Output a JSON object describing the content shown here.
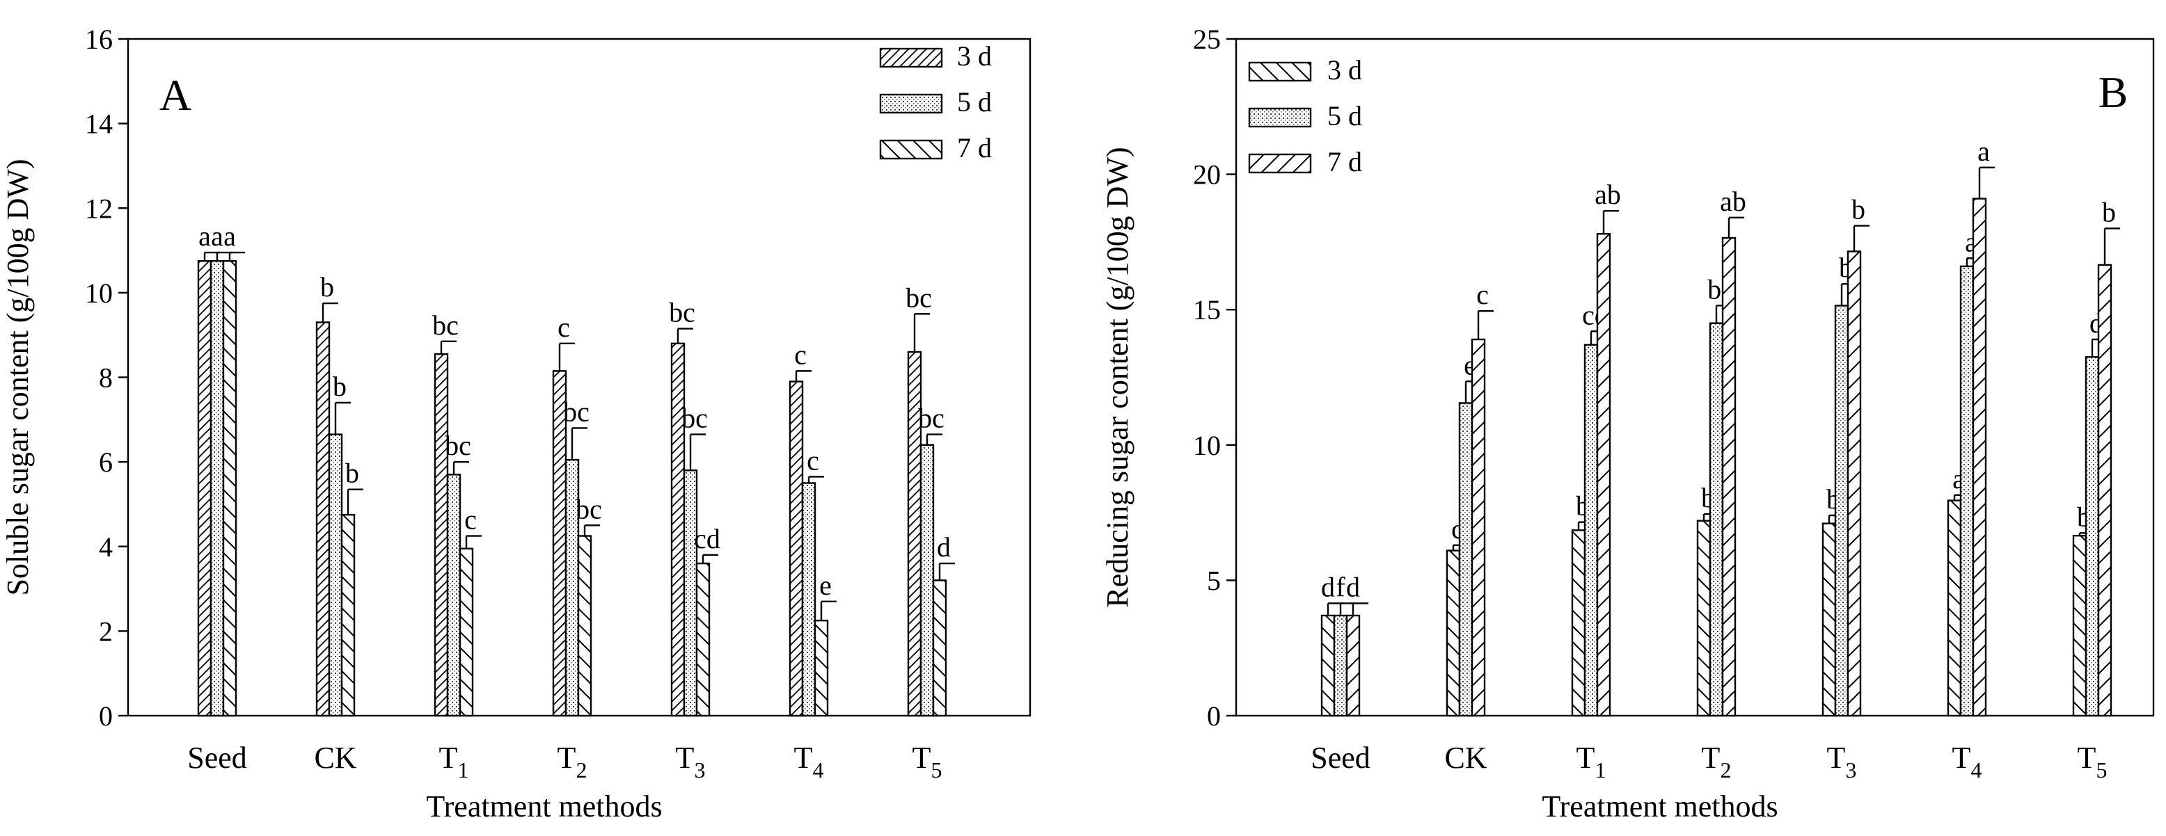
{
  "chart_data": [
    {
      "panel": "A",
      "type": "bar",
      "xlabel": "Treatment methods",
      "ylabel": "Soluble sugar content (g/100g DW)",
      "ylim": [
        0,
        16
      ],
      "yticks": [
        0,
        2,
        4,
        6,
        8,
        10,
        12,
        14,
        16
      ],
      "legend_position": "top-right",
      "categories": [
        {
          "base": "Seed",
          "sub": ""
        },
        {
          "base": "CK",
          "sub": ""
        },
        {
          "base": "T",
          "sub": "1"
        },
        {
          "base": "T",
          "sub": "2"
        },
        {
          "base": "T",
          "sub": "3"
        },
        {
          "base": "T",
          "sub": "4"
        },
        {
          "base": "T",
          "sub": "5"
        }
      ],
      "series": [
        {
          "name": "3 d",
          "pattern": "dense",
          "values": [
            10.75,
            9.3,
            8.55,
            8.15,
            8.8,
            7.9,
            8.6
          ],
          "errors": [
            0.2,
            0.45,
            0.3,
            0.65,
            0.35,
            0.25,
            0.9
          ],
          "labels": [
            "a",
            "b",
            "bc",
            "c",
            "bc",
            "c",
            "bc"
          ]
        },
        {
          "name": "5 d",
          "pattern": "dots",
          "values": [
            10.75,
            6.65,
            5.7,
            6.05,
            5.8,
            5.5,
            6.4
          ],
          "errors": [
            0.2,
            0.75,
            0.3,
            0.75,
            0.85,
            0.15,
            0.25
          ],
          "labels": [
            "a",
            "b",
            "bc",
            "bc",
            "bc",
            "c",
            "bc"
          ]
        },
        {
          "name": "7 d",
          "pattern": "backslash",
          "values": [
            10.75,
            4.75,
            3.95,
            4.25,
            3.6,
            2.25,
            3.2
          ],
          "errors": [
            0.2,
            0.6,
            0.3,
            0.25,
            0.2,
            0.45,
            0.4
          ],
          "labels": [
            "a",
            "b",
            "c",
            "bc",
            "cd",
            "e",
            "d"
          ]
        }
      ]
    },
    {
      "panel": "B",
      "type": "bar",
      "xlabel": "Treatment methods",
      "ylabel": "Reducing sugar content (g/100g DW)",
      "ylim": [
        0,
        25
      ],
      "yticks": [
        0,
        5,
        10,
        15,
        20,
        25
      ],
      "legend_position": "top-left",
      "categories": [
        {
          "base": "Seed",
          "sub": ""
        },
        {
          "base": "CK",
          "sub": ""
        },
        {
          "base": "T",
          "sub": "1"
        },
        {
          "base": "T",
          "sub": "2"
        },
        {
          "base": "T",
          "sub": "3"
        },
        {
          "base": "T",
          "sub": "4"
        },
        {
          "base": "T",
          "sub": "5"
        }
      ],
      "series": [
        {
          "name": "3 d",
          "pattern": "backslash",
          "values": [
            3.7,
            6.1,
            6.85,
            7.2,
            7.1,
            7.95,
            6.65
          ],
          "errors": [
            0.45,
            0.2,
            0.3,
            0.25,
            0.3,
            0.2,
            0.1
          ],
          "labels": [
            "d",
            "c",
            "b",
            "b",
            "b",
            "a",
            "b"
          ]
        },
        {
          "name": "5 d",
          "pattern": "dots",
          "values": [
            3.7,
            11.55,
            13.7,
            14.5,
            15.15,
            16.6,
            13.25
          ],
          "errors": [
            0.45,
            0.8,
            0.5,
            0.65,
            0.8,
            0.3,
            0.65
          ],
          "labels": [
            "f",
            "e",
            "cd",
            "bc",
            "b",
            "a",
            "d"
          ]
        },
        {
          "name": "7 d",
          "pattern": "slash",
          "values": [
            3.7,
            13.9,
            17.8,
            17.65,
            17.15,
            19.1,
            16.65
          ],
          "errors": [
            0.45,
            1.05,
            0.85,
            0.75,
            0.95,
            1.15,
            1.35
          ],
          "labels": [
            "d",
            "c",
            "ab",
            "ab",
            "b",
            "a",
            "b"
          ]
        }
      ]
    }
  ]
}
